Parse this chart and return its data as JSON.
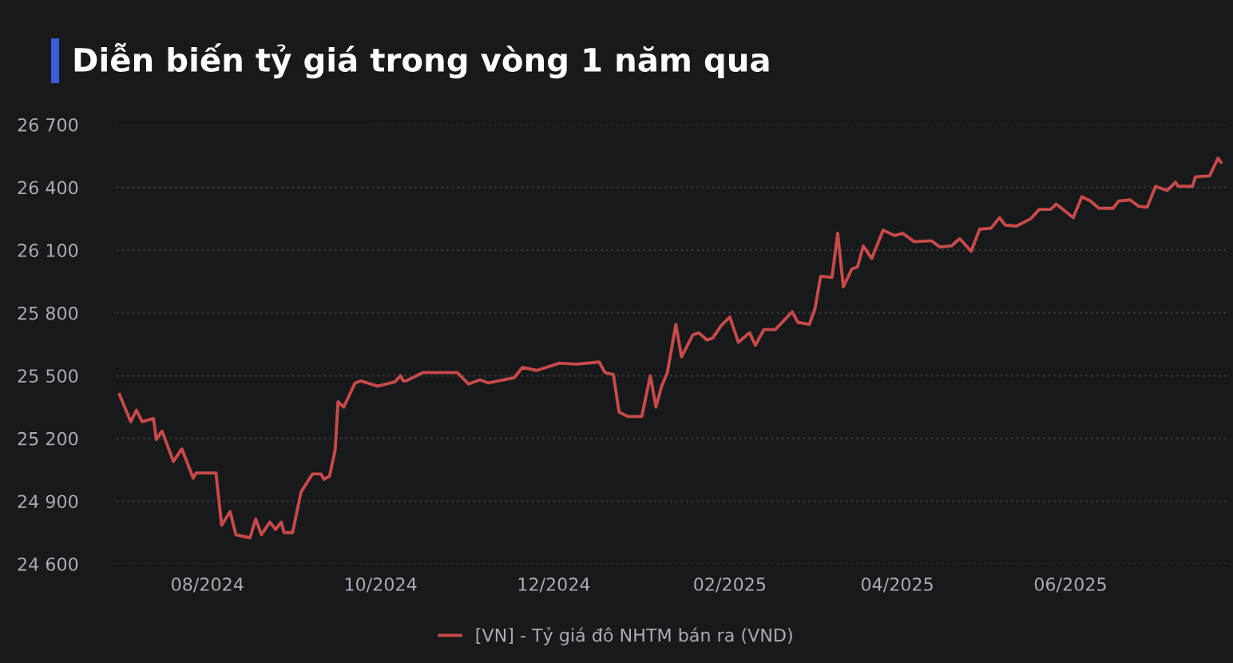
{
  "chart_data": {
    "type": "line",
    "title": "Diễn biến tỷ giá trong vòng 1 năm qua",
    "x": [
      "2024-07-01",
      "2024-07-05",
      "2024-07-07",
      "2024-07-09",
      "2024-07-13",
      "2024-07-14",
      "2024-07-16",
      "2024-07-20",
      "2024-07-23",
      "2024-07-27",
      "2024-07-28",
      "2024-08-04",
      "2024-08-06",
      "2024-08-09",
      "2024-08-11",
      "2024-08-16",
      "2024-08-18",
      "2024-08-20",
      "2024-08-23",
      "2024-08-25",
      "2024-08-27",
      "2024-08-28",
      "2024-08-31",
      "2024-09-03",
      "2024-09-07",
      "2024-09-10",
      "2024-09-11",
      "2024-09-13",
      "2024-09-15",
      "2024-09-16",
      "2024-09-18",
      "2024-09-22",
      "2024-09-24",
      "2024-09-30",
      "2024-10-06",
      "2024-10-08",
      "2024-10-09",
      "2024-10-10",
      "2024-10-16",
      "2024-10-28",
      "2024-11-01",
      "2024-11-05",
      "2024-11-08",
      "2024-11-17",
      "2024-11-20",
      "2024-11-25",
      "2024-12-03",
      "2024-12-09",
      "2024-12-17",
      "2024-12-19",
      "2024-12-22",
      "2024-12-24",
      "2024-12-27",
      "2025-01-01",
      "2025-01-04",
      "2025-01-06",
      "2025-01-08",
      "2025-01-10",
      "2025-01-13",
      "2025-01-15",
      "2025-01-19",
      "2025-01-21",
      "2025-01-24",
      "2025-01-26",
      "2025-01-29",
      "2025-02-01",
      "2025-02-04",
      "2025-02-08",
      "2025-02-10",
      "2025-02-13",
      "2025-02-17",
      "2025-02-23",
      "2025-02-25",
      "2025-03-01",
      "2025-03-03",
      "2025-03-05",
      "2025-03-09",
      "2025-03-11",
      "2025-03-13",
      "2025-03-16",
      "2025-03-18",
      "2025-03-20",
      "2025-03-23",
      "2025-03-27",
      "2025-03-31",
      "2025-04-03",
      "2025-04-07",
      "2025-04-13",
      "2025-04-16",
      "2025-04-20",
      "2025-04-23",
      "2025-04-27",
      "2025-04-30",
      "2025-05-04",
      "2025-05-07",
      "2025-05-09",
      "2025-05-13",
      "2025-05-18",
      "2025-05-21",
      "2025-05-25",
      "2025-05-27",
      "2025-06-02",
      "2025-06-05",
      "2025-06-08",
      "2025-06-11",
      "2025-06-16",
      "2025-06-18",
      "2025-06-22",
      "2025-06-25",
      "2025-06-28",
      "2025-07-01",
      "2025-07-05",
      "2025-07-08",
      "2025-07-09",
      "2025-07-14",
      "2025-07-15",
      "2025-07-20",
      "2025-07-23",
      "2025-07-24"
    ],
    "series": [
      {
        "name": "[VN] - Tỷ giá đô NHTM bán ra (VND)",
        "color": "#c84a4a",
        "values": [
          25410,
          25280,
          25335,
          25280,
          25295,
          25195,
          25235,
          25090,
          25150,
          25010,
          25035,
          25035,
          24785,
          24850,
          24740,
          24725,
          24815,
          24740,
          24800,
          24765,
          24800,
          24750,
          24750,
          24945,
          25030,
          25030,
          25005,
          25020,
          25145,
          25375,
          25350,
          25465,
          25475,
          25450,
          25470,
          25500,
          25475,
          25475,
          25515,
          25515,
          25460,
          25480,
          25465,
          25490,
          25540,
          25525,
          25560,
          25555,
          25565,
          25515,
          25505,
          25325,
          25305,
          25305,
          25500,
          25350,
          25450,
          25515,
          25745,
          25590,
          25695,
          25705,
          25670,
          25680,
          25740,
          25780,
          25660,
          25705,
          25645,
          25720,
          25720,
          25805,
          25755,
          25745,
          25820,
          25975,
          25970,
          26180,
          25925,
          26010,
          26020,
          26120,
          26060,
          26195,
          26170,
          26180,
          26140,
          26145,
          26115,
          26120,
          26155,
          26095,
          26200,
          26205,
          26255,
          26220,
          26215,
          26250,
          26295,
          26295,
          26320,
          26255,
          26355,
          26335,
          26300,
          26300,
          26335,
          26340,
          26310,
          26305,
          26405,
          26385,
          26425,
          26405,
          26405,
          26450,
          26455,
          26540,
          26520
        ]
      }
    ],
    "xlim": [
      "2024-06-30",
      "2025-07-26"
    ],
    "xticks": [
      {
        "value": "2024-08-01",
        "label": "08/2024"
      },
      {
        "value": "2024-10-01",
        "label": "10/2024"
      },
      {
        "value": "2024-12-01",
        "label": "12/2024"
      },
      {
        "value": "2025-02-01",
        "label": "02/2025"
      },
      {
        "value": "2025-04-01",
        "label": "04/2025"
      },
      {
        "value": "2025-06-01",
        "label": "06/2025"
      }
    ],
    "ylim": [
      24600,
      26700
    ],
    "yticks": [
      {
        "value": 24600,
        "label": "24 600"
      },
      {
        "value": 24900,
        "label": "24 900"
      },
      {
        "value": 25200,
        "label": "25 200"
      },
      {
        "value": 25500,
        "label": "25 500"
      },
      {
        "value": 25800,
        "label": "25 800"
      },
      {
        "value": 26100,
        "label": "26 100"
      },
      {
        "value": 26400,
        "label": "26 400"
      },
      {
        "value": 26700,
        "label": "26 700"
      }
    ],
    "grid": "y",
    "legend": "bottom",
    "marker": "none",
    "line_style": "solid"
  }
}
